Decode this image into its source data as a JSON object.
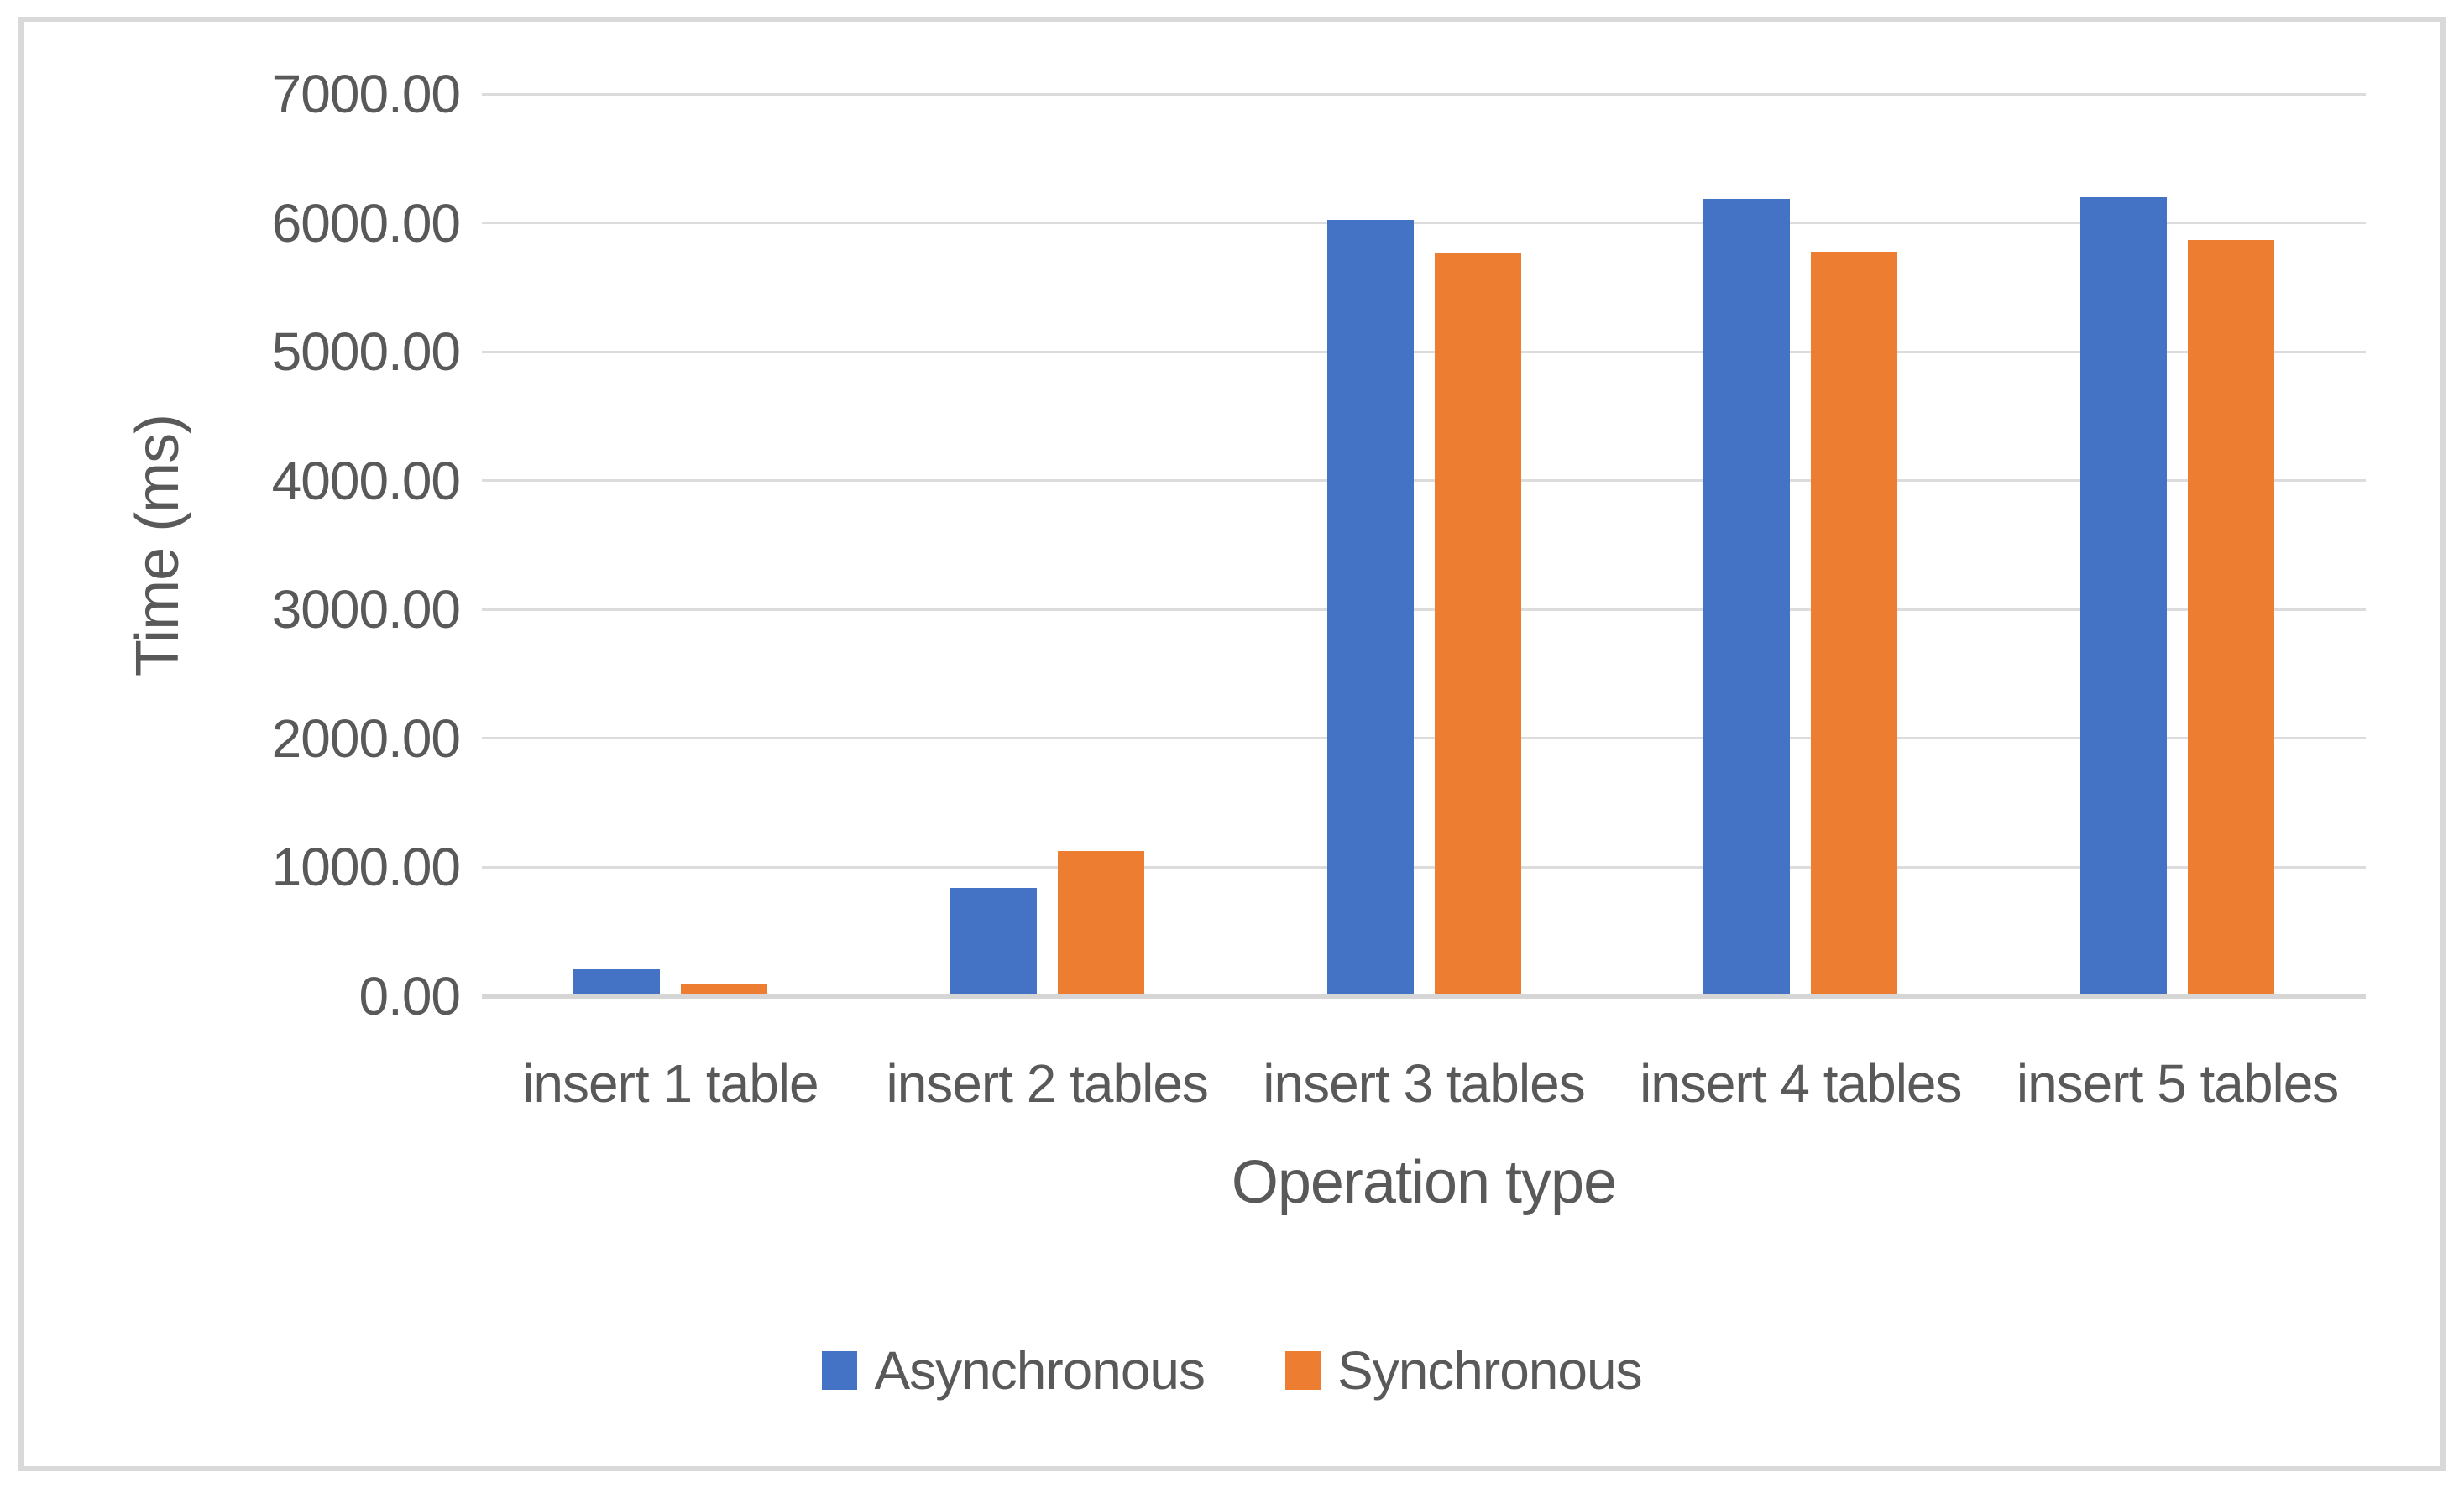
{
  "chart_data": {
    "type": "bar",
    "title": "",
    "categories": [
      "insert 1 table",
      "insert 2 tables",
      "insert 3 tables",
      "insert 4 tables",
      "insert 5 tables"
    ],
    "series": [
      {
        "name": "Asynchronous",
        "color": "#4472C4",
        "values": [
          210,
          840,
          6025,
          6185,
          6200
        ]
      },
      {
        "name": "Synchronous",
        "color": "#ED7D31",
        "values": [
          95,
          1125,
          5765,
          5775,
          5865
        ]
      }
    ],
    "xlabel": "Operation type",
    "ylabel": "Time (ms)",
    "ylim": [
      0,
      7000
    ],
    "ytick_step": 1000,
    "ytick_labels_top_to_bottom": [
      "7000.00",
      "6000.00",
      "5000.00",
      "4000.00",
      "3000.00",
      "2000.00",
      "1000.00",
      "0.00"
    ],
    "grid": "horizontal",
    "legend_position": "bottom"
  },
  "colors": {
    "text": "#595959",
    "gridline": "#DCDCDC",
    "axis_line": "#D6D6D6",
    "frame_border": "#D9D9D9",
    "background": "#FFFFFF"
  }
}
